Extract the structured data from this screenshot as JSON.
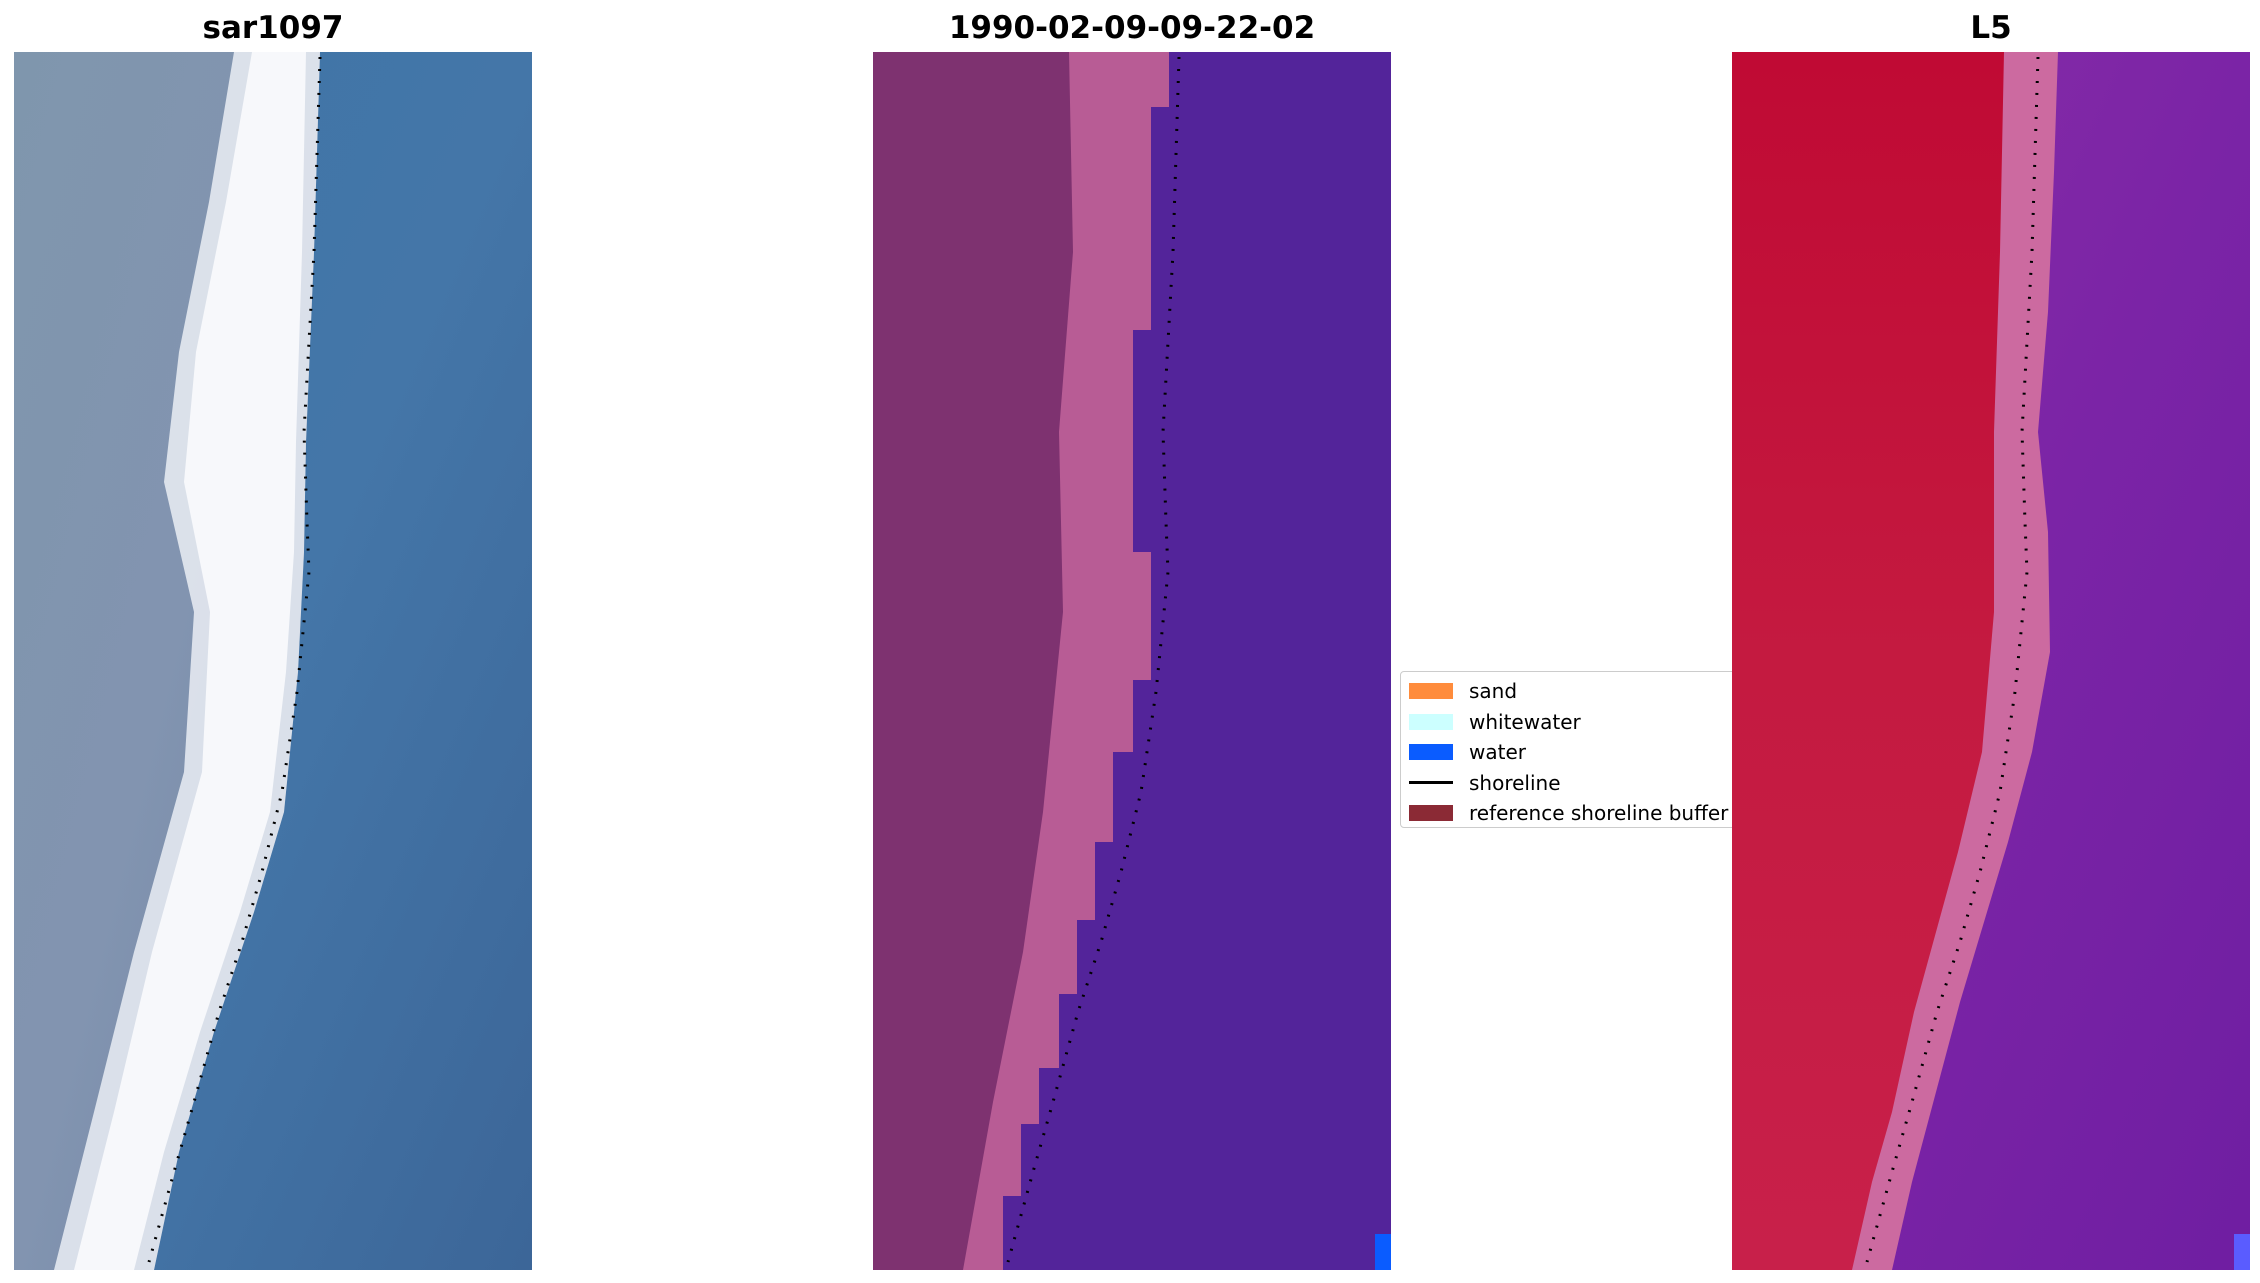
{
  "panels": [
    {
      "title": "sar1097"
    },
    {
      "title": "1990-02-09-09-22-02"
    },
    {
      "title": "L5"
    }
  ],
  "legend": {
    "items": [
      {
        "label": "sand",
        "color": "#ff8c3c",
        "kind": "patch"
      },
      {
        "label": "whitewater",
        "color": "#ccffff",
        "kind": "patch"
      },
      {
        "label": "water",
        "color": "#0a5cff",
        "kind": "patch"
      },
      {
        "label": "shoreline",
        "color": "#000000",
        "kind": "line"
      },
      {
        "label": "reference shoreline buffer",
        "color": "#8b2a35",
        "kind": "patch"
      }
    ]
  },
  "colors": {
    "rgb_water": "#3f6fa0",
    "rgb_sand": "#7e8ea8",
    "rgb_whitewater": "#f2f4f8",
    "class_land": "#7e3270",
    "class_buffer": "#b85c95",
    "class_water": "#53249a",
    "class_water_pixel": "#0a5cff",
    "index_land": "#c0163a",
    "index_buffer": "#d06a98",
    "index_water": "#7a22a4",
    "index_water_pixel": "#5a5cff",
    "shoreline": "#000000"
  }
}
